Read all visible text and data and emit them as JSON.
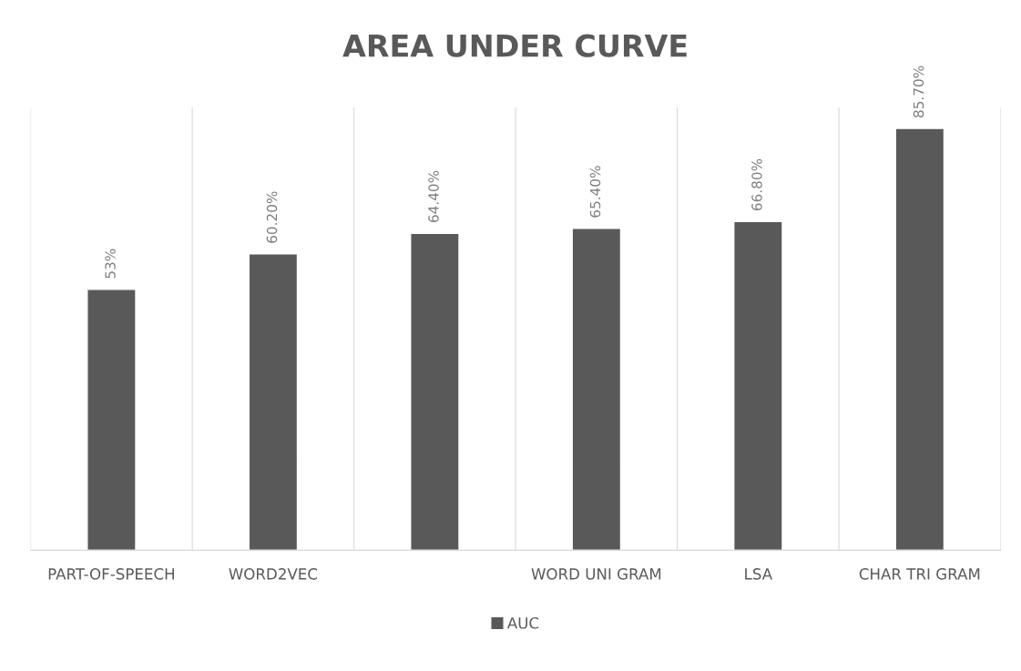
{
  "chart_data": {
    "type": "bar",
    "title": "AREA UNDER CURVE",
    "categories": [
      "PART-OF-SPEECH",
      "WORD2VEC",
      null,
      "WORD UNI GRAM",
      "LSA",
      "CHAR TRI GRAM"
    ],
    "series": [
      {
        "name": "AUC",
        "color": "#595959",
        "values": [
          53,
          60.2,
          64.4,
          65.4,
          66.8,
          85.7
        ],
        "value_labels": [
          "53%",
          "60.20%",
          "64.40%",
          "65.40%",
          "66.80%",
          "85.70%"
        ]
      }
    ],
    "grid": "x",
    "legend": "bottom",
    "tick_labels": "x"
  }
}
